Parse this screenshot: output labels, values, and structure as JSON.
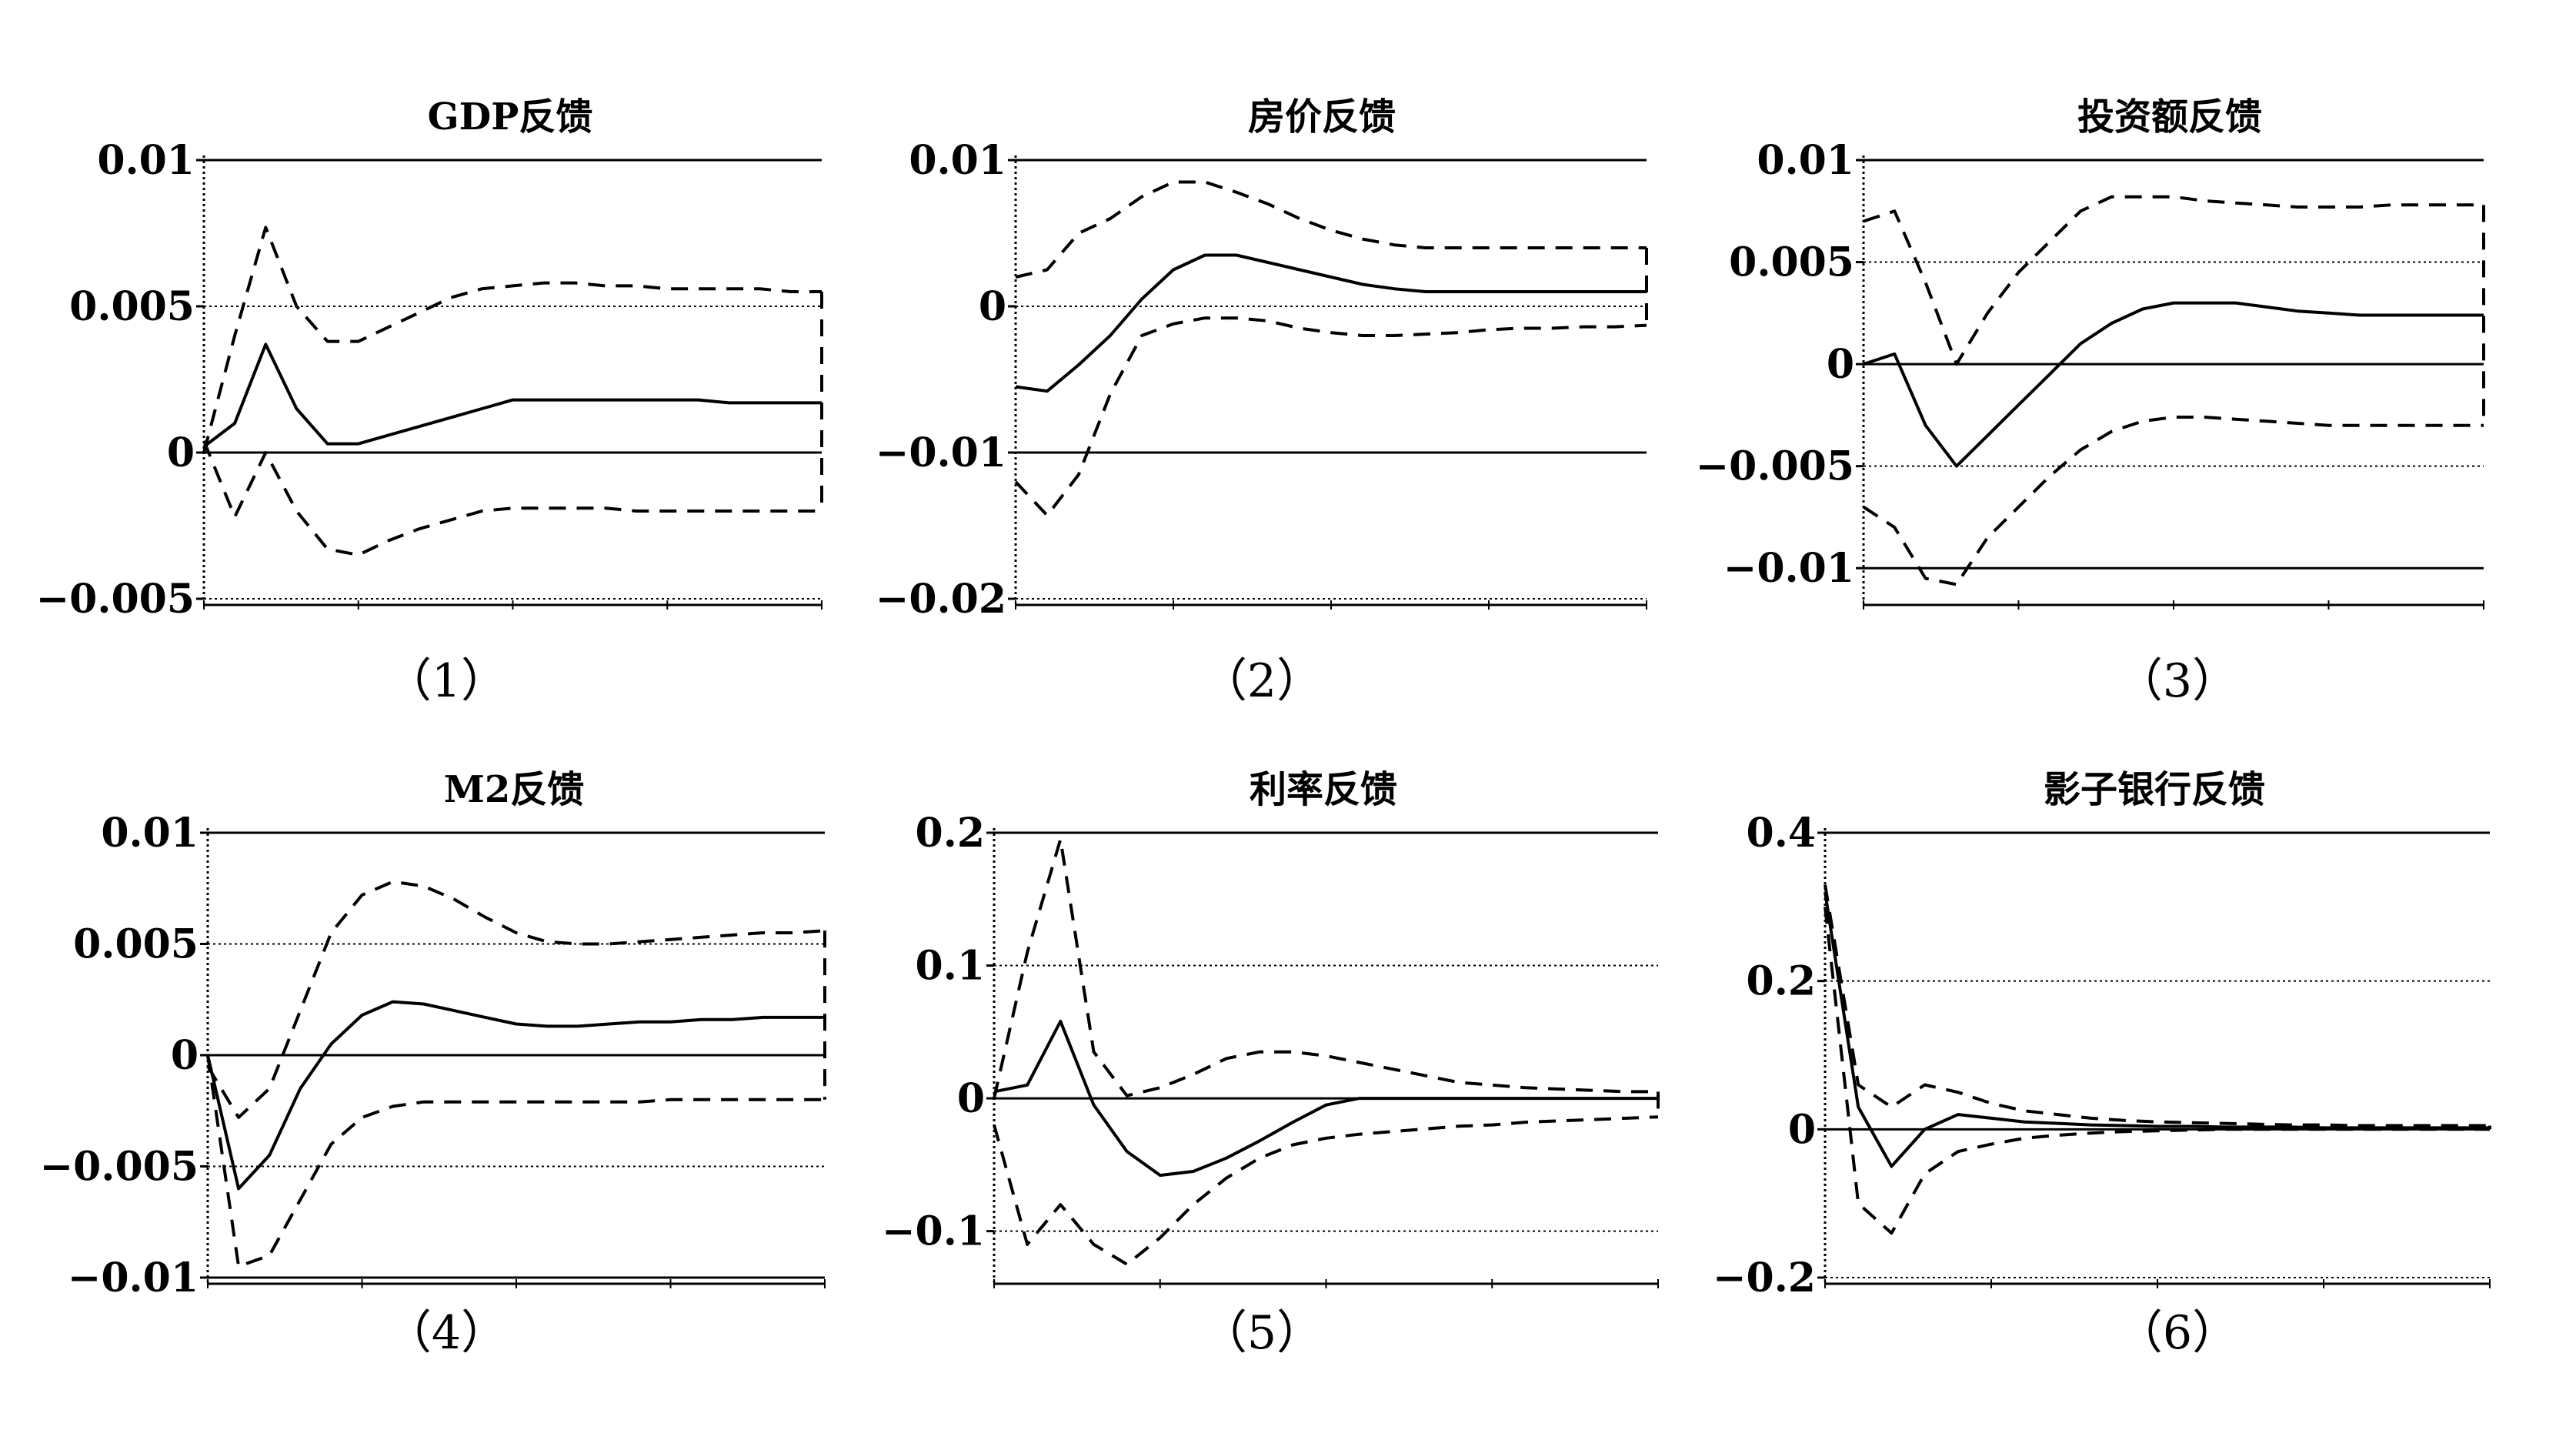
{
  "chart_data": [
    {
      "type": "line",
      "title": "GDP反馈",
      "caption": "（1）",
      "ylim": [
        -0.005,
        0.01
      ],
      "yticks": [
        0.01,
        0.005,
        0,
        -0.005
      ],
      "ytick_labels": [
        "0.01",
        "0.005",
        "0",
        "−0.005"
      ],
      "x": [
        0,
        1,
        2,
        3,
        4,
        5,
        6,
        7,
        8,
        9,
        10,
        11,
        12,
        13,
        14,
        15,
        16,
        17,
        18,
        19,
        20
      ],
      "series": [
        {
          "style": "solid",
          "values": [
            0.0002,
            0.001,
            0.0037,
            0.0015,
            0.0003,
            0.0003,
            0.0006,
            0.0009,
            0.0012,
            0.0015,
            0.0018,
            0.0018,
            0.0018,
            0.0018,
            0.0018,
            0.0018,
            0.0018,
            0.0017,
            0.0017,
            0.0017,
            0.0017
          ]
        },
        {
          "style": "dashed",
          "values": [
            0.0,
            0.004,
            0.0077,
            0.005,
            0.0038,
            0.0038,
            0.0043,
            0.0048,
            0.0053,
            0.0056,
            0.0057,
            0.0058,
            0.0058,
            0.0057,
            0.0057,
            0.0056,
            0.0056,
            0.0056,
            0.0056,
            0.0055,
            0.0055
          ]
        },
        {
          "style": "dashed",
          "values": [
            0.0004,
            -0.0022,
            0.0,
            -0.002,
            -0.0033,
            -0.0035,
            -0.003,
            -0.0026,
            -0.0023,
            -0.002,
            -0.0019,
            -0.0019,
            -0.0019,
            -0.0019,
            -0.002,
            -0.002,
            -0.002,
            -0.002,
            -0.002,
            -0.002,
            -0.002
          ]
        }
      ]
    },
    {
      "type": "line",
      "title": "房价反馈",
      "caption": "（2）",
      "ylim": [
        -0.02,
        0.01
      ],
      "yticks": [
        0.01,
        0,
        -0.01,
        -0.02
      ],
      "ytick_labels": [
        "0.01",
        "0",
        "−0.01",
        "−0.02"
      ],
      "x": [
        0,
        1,
        2,
        3,
        4,
        5,
        6,
        7,
        8,
        9,
        10,
        11,
        12,
        13,
        14,
        15,
        16,
        17,
        18,
        19,
        20
      ],
      "series": [
        {
          "style": "solid",
          "values": [
            -0.0055,
            -0.0058,
            -0.004,
            -0.002,
            0.0005,
            0.0025,
            0.0035,
            0.0035,
            0.003,
            0.0025,
            0.002,
            0.0015,
            0.0012,
            0.001,
            0.001,
            0.001,
            0.001,
            0.001,
            0.001,
            0.001,
            0.001
          ]
        },
        {
          "style": "dashed",
          "values": [
            0.002,
            0.0025,
            0.005,
            0.006,
            0.0075,
            0.0085,
            0.0085,
            0.0078,
            0.007,
            0.006,
            0.0052,
            0.0046,
            0.0042,
            0.004,
            0.004,
            0.004,
            0.004,
            0.004,
            0.004,
            0.004,
            0.004
          ]
        },
        {
          "style": "dashed",
          "values": [
            -0.012,
            -0.0143,
            -0.0115,
            -0.006,
            -0.002,
            -0.0012,
            -0.0008,
            -0.0008,
            -0.001,
            -0.0015,
            -0.0018,
            -0.002,
            -0.002,
            -0.0019,
            -0.0018,
            -0.0016,
            -0.0015,
            -0.0015,
            -0.0014,
            -0.0014,
            -0.0013
          ]
        }
      ]
    },
    {
      "type": "line",
      "title": "投资额反馈",
      "caption": "（3）",
      "ylim": [
        -0.0115,
        0.01
      ],
      "yticks": [
        0.01,
        0.005,
        0,
        -0.005,
        -0.01
      ],
      "ytick_labels": [
        "0.01",
        "0.005",
        "0",
        "−0.005",
        "−0.01"
      ],
      "x": [
        0,
        1,
        2,
        3,
        4,
        5,
        6,
        7,
        8,
        9,
        10,
        11,
        12,
        13,
        14,
        15,
        16,
        17,
        18,
        19,
        20
      ],
      "series": [
        {
          "style": "solid",
          "values": [
            0.0,
            0.0005,
            -0.003,
            -0.005,
            -0.0035,
            -0.002,
            -0.0005,
            0.001,
            0.002,
            0.0027,
            0.003,
            0.003,
            0.003,
            0.0028,
            0.0026,
            0.0025,
            0.0024,
            0.0024,
            0.0024,
            0.0024,
            0.0024
          ]
        },
        {
          "style": "dashed",
          "values": [
            0.007,
            0.0075,
            0.004,
            0.0,
            0.0025,
            0.0045,
            0.006,
            0.0075,
            0.0082,
            0.0082,
            0.0082,
            0.008,
            0.0079,
            0.0078,
            0.0077,
            0.0077,
            0.0077,
            0.0078,
            0.0078,
            0.0078,
            0.0078
          ]
        },
        {
          "style": "dashed",
          "values": [
            -0.007,
            -0.008,
            -0.0105,
            -0.0108,
            -0.0085,
            -0.007,
            -0.0055,
            -0.0042,
            -0.0033,
            -0.0028,
            -0.0026,
            -0.0026,
            -0.0027,
            -0.0028,
            -0.0029,
            -0.003,
            -0.003,
            -0.003,
            -0.003,
            -0.003,
            -0.003
          ]
        }
      ]
    },
    {
      "type": "line",
      "title": "M2反馈",
      "caption": "（4）",
      "ylim": [
        -0.01,
        0.01
      ],
      "yticks": [
        0.01,
        0.005,
        0,
        -0.005,
        -0.01
      ],
      "ytick_labels": [
        "0.01",
        "0.005",
        "0",
        "−0.005",
        "−0.01"
      ],
      "x": [
        0,
        1,
        2,
        3,
        4,
        5,
        6,
        7,
        8,
        9,
        10,
        11,
        12,
        13,
        14,
        15,
        16,
        17,
        18,
        19,
        20
      ],
      "series": [
        {
          "style": "solid",
          "values": [
            0.0,
            -0.006,
            -0.0045,
            -0.0015,
            0.0005,
            0.0018,
            0.0024,
            0.0023,
            0.002,
            0.0017,
            0.0014,
            0.0013,
            0.0013,
            0.0014,
            0.0015,
            0.0015,
            0.0016,
            0.0016,
            0.0017,
            0.0017,
            0.0017
          ]
        },
        {
          "style": "dashed",
          "values": [
            -0.0005,
            -0.0028,
            -0.0015,
            0.002,
            0.0055,
            0.0072,
            0.0078,
            0.0076,
            0.007,
            0.0062,
            0.0055,
            0.0051,
            0.005,
            0.005,
            0.0051,
            0.0052,
            0.0053,
            0.0054,
            0.0055,
            0.0055,
            0.0056
          ]
        },
        {
          "style": "dashed",
          "values": [
            0.0,
            -0.0095,
            -0.009,
            -0.0065,
            -0.004,
            -0.0028,
            -0.0023,
            -0.0021,
            -0.0021,
            -0.0021,
            -0.0021,
            -0.0021,
            -0.0021,
            -0.0021,
            -0.0021,
            -0.002,
            -0.002,
            -0.002,
            -0.002,
            -0.002,
            -0.002
          ]
        }
      ]
    },
    {
      "type": "line",
      "title": "利率反馈",
      "caption": "（5）",
      "ylim": [
        -0.135,
        0.2
      ],
      "yticks": [
        0.2,
        0.1,
        0,
        -0.1
      ],
      "ytick_labels": [
        "0.2",
        "0.1",
        "0",
        "−0.1"
      ],
      "x": [
        0,
        1,
        2,
        3,
        4,
        5,
        6,
        7,
        8,
        9,
        10,
        11,
        12,
        13,
        14,
        15,
        16,
        17,
        18,
        19,
        20
      ],
      "series": [
        {
          "style": "solid",
          "values": [
            0.005,
            0.01,
            0.058,
            -0.005,
            -0.04,
            -0.058,
            -0.055,
            -0.045,
            -0.032,
            -0.018,
            -0.005,
            0.0,
            0.0,
            0.0,
            0.0,
            0.0,
            0.0,
            0.0,
            0.0,
            0.0,
            0.0
          ]
        },
        {
          "style": "dashed",
          "values": [
            0.0,
            0.11,
            0.195,
            0.035,
            0.002,
            0.008,
            0.018,
            0.03,
            0.035,
            0.035,
            0.032,
            0.027,
            0.022,
            0.017,
            0.012,
            0.01,
            0.008,
            0.007,
            0.006,
            0.005,
            0.005
          ]
        },
        {
          "style": "dashed",
          "values": [
            -0.02,
            -0.11,
            -0.08,
            -0.11,
            -0.125,
            -0.105,
            -0.08,
            -0.06,
            -0.045,
            -0.035,
            -0.03,
            -0.027,
            -0.025,
            -0.023,
            -0.021,
            -0.02,
            -0.018,
            -0.017,
            -0.016,
            -0.015,
            -0.014
          ]
        }
      ]
    },
    {
      "type": "line",
      "title": "影子银行反馈",
      "caption": "（6）",
      "ylim": [
        -0.2,
        0.4
      ],
      "yticks": [
        0.4,
        0.2,
        0,
        -0.2
      ],
      "ytick_labels": [
        "0.4",
        "0.2",
        "0",
        "−0.2"
      ],
      "x": [
        0,
        1,
        2,
        3,
        4,
        5,
        6,
        7,
        8,
        9,
        10,
        11,
        12,
        13,
        14,
        15,
        16,
        17,
        18,
        19,
        20
      ],
      "series": [
        {
          "style": "solid",
          "values": [
            0.32,
            0.03,
            -0.05,
            0.0,
            0.02,
            0.015,
            0.01,
            0.008,
            0.006,
            0.005,
            0.004,
            0.004,
            0.003,
            0.003,
            0.003,
            0.002,
            0.002,
            0.002,
            0.002,
            0.002,
            0.002
          ]
        },
        {
          "style": "dashed",
          "values": [
            0.33,
            0.06,
            0.03,
            0.06,
            0.05,
            0.035,
            0.025,
            0.02,
            0.015,
            0.012,
            0.01,
            0.009,
            0.008,
            0.007,
            0.006,
            0.006,
            0.005,
            0.005,
            0.005,
            0.005,
            0.005
          ]
        },
        {
          "style": "dashed",
          "values": [
            0.3,
            -0.1,
            -0.14,
            -0.06,
            -0.03,
            -0.02,
            -0.012,
            -0.008,
            -0.005,
            -0.003,
            -0.002,
            -0.001,
            0.0,
            0.0,
            0.0,
            0.0,
            0.0,
            0.0,
            0.0,
            0.0,
            0.0
          ]
        }
      ]
    }
  ]
}
